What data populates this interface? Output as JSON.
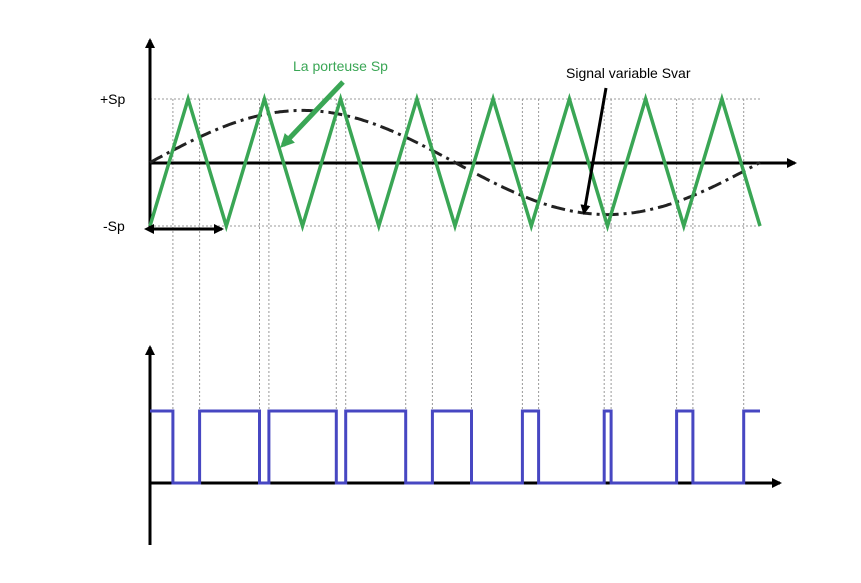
{
  "labels": {
    "plus_sp": "+Sp",
    "minus_sp": "-Sp",
    "carrier_callout": "La porteuse Sp",
    "signal_callout": "Signal variable Svar"
  },
  "colors": {
    "carrier": "#3aa655",
    "pwm": "#4747c2",
    "axis": "#000000",
    "modulating": "#222222",
    "guide": "#9a9a9a"
  },
  "modulation": {
    "carrier_periods": 8,
    "carrier_amplitude": 1,
    "modulating_waveform": "sine",
    "modulating_amplitude": 0.82,
    "modulating_periods": 1,
    "pwm_levels": [
      "low",
      "high"
    ]
  }
}
